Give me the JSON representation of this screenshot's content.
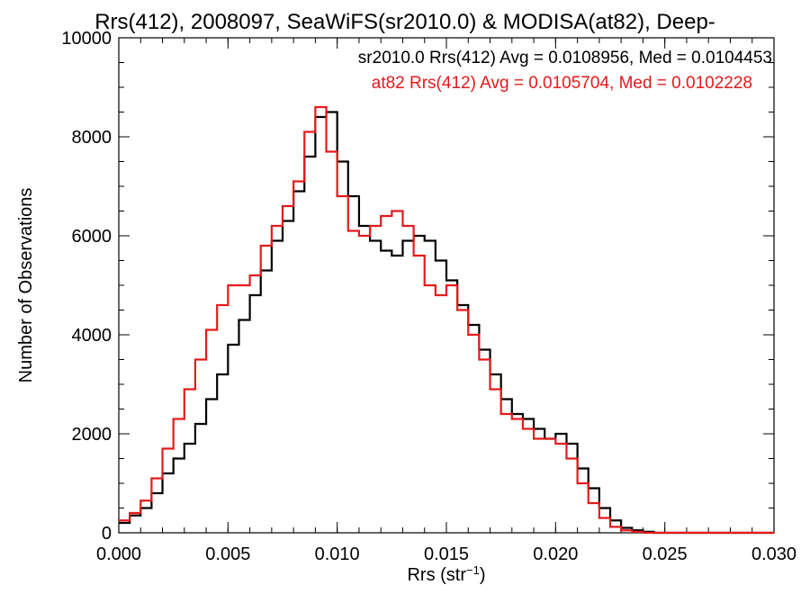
{
  "chart_data": {
    "type": "line",
    "title": "Rrs(412), 2008097, SeaWiFS(sr2010.0) & MODISA(at82), Deep-",
    "xlabel": "Rrs (str",
    "xlabel_sup": "−1",
    "xlabel_end": ")",
    "ylabel": "Number of Observations",
    "xlim": [
      0.0,
      0.03
    ],
    "ylim": [
      0,
      10000
    ],
    "xticks": [
      0.0,
      0.005,
      0.01,
      0.015,
      0.02,
      0.025,
      0.03
    ],
    "xtick_labels": [
      "0.000",
      "0.005",
      "0.010",
      "0.015",
      "0.020",
      "0.025",
      "0.030"
    ],
    "yticks": [
      0,
      2000,
      4000,
      6000,
      8000,
      10000
    ],
    "ytick_labels": [
      "0",
      "2000",
      "4000",
      "6000",
      "8000",
      "10000"
    ],
    "grid": false,
    "series": [
      {
        "name": "sr2010.0 Rrs(412) Avg = 0.0108956, Med = 0.0104453",
        "color": "#000000",
        "x": [
          0.0,
          0.0005,
          0.001,
          0.0015,
          0.002,
          0.0025,
          0.003,
          0.0035,
          0.004,
          0.0045,
          0.005,
          0.0055,
          0.006,
          0.0065,
          0.007,
          0.0075,
          0.008,
          0.0085,
          0.009,
          0.0095,
          0.01,
          0.0105,
          0.011,
          0.0115,
          0.012,
          0.0125,
          0.013,
          0.0135,
          0.014,
          0.0145,
          0.015,
          0.0155,
          0.016,
          0.0165,
          0.017,
          0.0175,
          0.018,
          0.0185,
          0.019,
          0.0195,
          0.02,
          0.0205,
          0.021,
          0.0215,
          0.022,
          0.0225,
          0.023,
          0.0235,
          0.024,
          0.0245,
          0.025,
          0.026,
          0.027,
          0.028,
          0.029,
          0.03
        ],
        "y": [
          200,
          350,
          500,
          800,
          1200,
          1500,
          1800,
          2200,
          2700,
          3200,
          3800,
          4300,
          4800,
          5300,
          5900,
          6300,
          6900,
          7600,
          8400,
          8500,
          7500,
          6800,
          6200,
          5900,
          5700,
          5600,
          5900,
          6000,
          5900,
          5500,
          5100,
          4600,
          4200,
          3700,
          3200,
          2700,
          2400,
          2300,
          2100,
          1900,
          2000,
          1800,
          1300,
          900,
          500,
          250,
          100,
          50,
          20,
          0,
          0,
          0,
          0,
          0,
          0,
          0
        ]
      },
      {
        "name": "at82 Rrs(412) Avg = 0.0105704, Med = 0.0102228",
        "color": "#e31a1c",
        "x": [
          0.0,
          0.0005,
          0.001,
          0.0015,
          0.002,
          0.0025,
          0.003,
          0.0035,
          0.004,
          0.0045,
          0.005,
          0.0055,
          0.006,
          0.0065,
          0.007,
          0.0075,
          0.008,
          0.0085,
          0.009,
          0.0095,
          0.01,
          0.0105,
          0.011,
          0.0115,
          0.012,
          0.0125,
          0.013,
          0.0135,
          0.014,
          0.0145,
          0.015,
          0.0155,
          0.016,
          0.0165,
          0.017,
          0.0175,
          0.018,
          0.0185,
          0.019,
          0.0195,
          0.02,
          0.0205,
          0.021,
          0.0215,
          0.022,
          0.0225,
          0.023,
          0.0235,
          0.024,
          0.0245,
          0.025,
          0.026,
          0.027,
          0.028,
          0.029,
          0.03
        ],
        "y": [
          250,
          400,
          650,
          1100,
          1700,
          2300,
          2900,
          3500,
          4100,
          4600,
          5000,
          5000,
          5200,
          5800,
          6200,
          6600,
          7100,
          8100,
          8600,
          7700,
          6800,
          6100,
          6000,
          6200,
          6400,
          6500,
          6200,
          5600,
          5000,
          4800,
          5000,
          4500,
          4000,
          3500,
          2900,
          2400,
          2300,
          2100,
          1900,
          1900,
          1800,
          1500,
          1000,
          600,
          300,
          120,
          50,
          20,
          0,
          0,
          0,
          0,
          0,
          0,
          0,
          0
        ]
      }
    ],
    "legend_position": "top-right"
  }
}
